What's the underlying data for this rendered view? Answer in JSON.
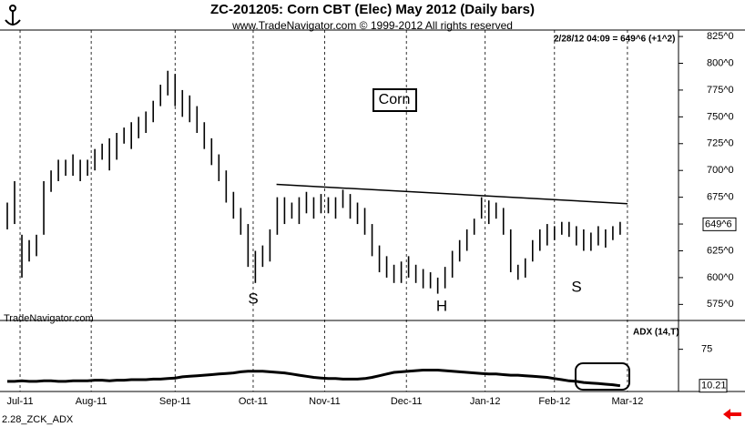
{
  "chart_data": [
    {
      "type": "hl-bar",
      "title": "ZC-201205:  Corn CBT (Elec) May 2012  (Daily bars)",
      "subtitle": "www.TradeNavigator.com © 1999-2012 All rights reserved",
      "quote": "2/28/12 04:09 = 649^6 (+1^2)",
      "label": "Corn",
      "watermark": "TradeNavigator.com",
      "annotations": [
        "S",
        "H",
        "S"
      ],
      "color": "#000000",
      "high": [
        670,
        690,
        640,
        635,
        640,
        690,
        700,
        710,
        710,
        715,
        710,
        710,
        720,
        725,
        730,
        735,
        740,
        745,
        750,
        755,
        765,
        780,
        793,
        790,
        775,
        770,
        760,
        745,
        730,
        715,
        700,
        680,
        665,
        650,
        625,
        630,
        645,
        675,
        675,
        670,
        675,
        680,
        675,
        678,
        675,
        675,
        682,
        678,
        670,
        665,
        650,
        630,
        620,
        612,
        615,
        620,
        612,
        608,
        605,
        600,
        610,
        625,
        635,
        645,
        655,
        675,
        672,
        670,
        665,
        645,
        612,
        618,
        635,
        645,
        650,
        648,
        652,
        652,
        648,
        645,
        642,
        648,
        645,
        648,
        652
      ],
      "low": [
        645,
        650,
        600,
        615,
        620,
        640,
        680,
        690,
        695,
        695,
        690,
        695,
        700,
        710,
        700,
        710,
        725,
        720,
        730,
        735,
        745,
        760,
        770,
        760,
        750,
        745,
        735,
        720,
        705,
        690,
        670,
        655,
        640,
        610,
        595,
        610,
        615,
        640,
        650,
        655,
        650,
        660,
        655,
        660,
        660,
        655,
        665,
        655,
        650,
        640,
        620,
        605,
        600,
        595,
        595,
        600,
        595,
        590,
        590,
        585,
        590,
        600,
        615,
        625,
        640,
        655,
        650,
        655,
        640,
        605,
        598,
        600,
        615,
        625,
        630,
        635,
        640,
        638,
        630,
        625,
        625,
        630,
        628,
        635,
        640
      ],
      "last_price": {
        "value": 649.75,
        "label": "649^6"
      },
      "trendline": {
        "x": [
          36.9,
          85
        ],
        "y": [
          687,
          669
        ]
      },
      "xlim": [
        -1,
        92
      ],
      "xticks": [
        {
          "value": 1.75,
          "label": "Jul-11"
        },
        {
          "value": 11.5,
          "label": "Aug-11"
        },
        {
          "value": 23,
          "label": "Sep-11"
        },
        {
          "value": 33.7,
          "label": "Oct-11"
        },
        {
          "value": 43.5,
          "label": "Nov-11"
        },
        {
          "value": 54.7,
          "label": "Dec-11"
        },
        {
          "value": 65.5,
          "label": "Jan-12"
        },
        {
          "value": 75,
          "label": "Feb-12"
        },
        {
          "value": 85,
          "label": "Mar-12"
        }
      ],
      "ylim": [
        560,
        831
      ],
      "yticks": [
        {
          "value": 575,
          "label": "575^0"
        },
        {
          "value": 600,
          "label": "600^0"
        },
        {
          "value": 625,
          "label": "625^0"
        },
        {
          "value": 650,
          "label": "650^0"
        },
        {
          "value": 675,
          "label": "675^0"
        },
        {
          "value": 700,
          "label": "700^0"
        },
        {
          "value": 725,
          "label": "725^0"
        },
        {
          "value": 750,
          "label": "750^0"
        },
        {
          "value": 775,
          "label": "775^0"
        },
        {
          "value": 800,
          "label": "800^0"
        },
        {
          "value": 825,
          "label": "825^0"
        }
      ]
    },
    {
      "type": "line",
      "title": "ADX (14,T)",
      "footer": "2.28_ZCK_ADX",
      "color": "#000000",
      "values": [
        18,
        18,
        19,
        18,
        18,
        19,
        19,
        18,
        18,
        19,
        19,
        19,
        20,
        20,
        19,
        20,
        20,
        21,
        21,
        21,
        22,
        22,
        23,
        24,
        26,
        27,
        28,
        29,
        30,
        31,
        32,
        33,
        35,
        36,
        36,
        36,
        35,
        34,
        33,
        31,
        29,
        27,
        25,
        24,
        23,
        23,
        22,
        22,
        22,
        23,
        25,
        28,
        31,
        34,
        35,
        36,
        37,
        38,
        38,
        38,
        37,
        36,
        35,
        34,
        33,
        32,
        31,
        31,
        30,
        29,
        29,
        28,
        27,
        26,
        25,
        23,
        21,
        19,
        18,
        16,
        15,
        14,
        13,
        12,
        10.21
      ],
      "xlim": [
        -1,
        92
      ],
      "ylim": [
        0,
        110
      ],
      "yticks": [
        75
      ]
    }
  ]
}
